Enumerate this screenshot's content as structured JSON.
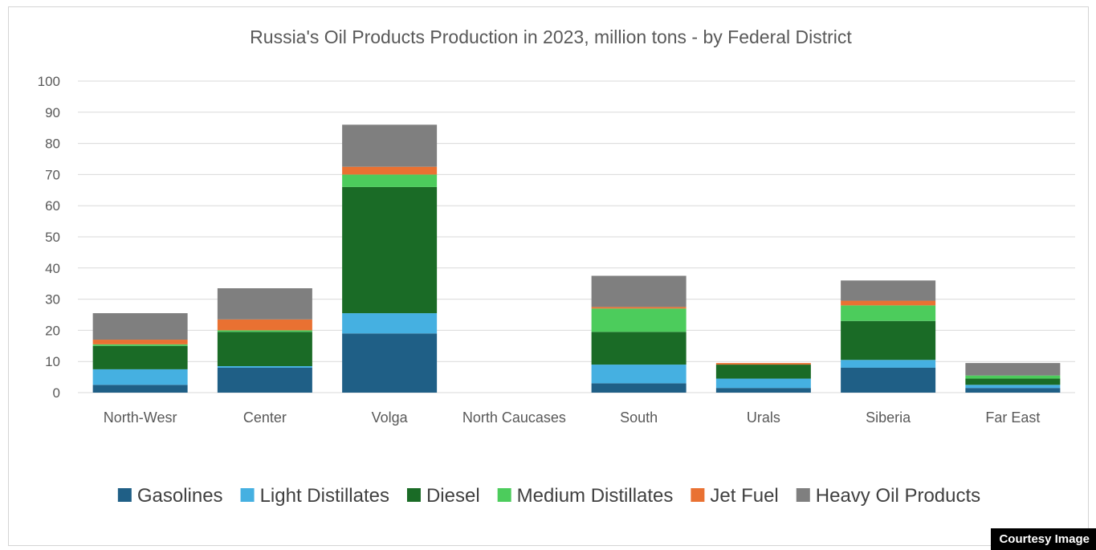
{
  "chart_data": {
    "type": "bar",
    "stacked": true,
    "title": "Russia's Oil Products Production in 2023, million tons - by Federal District",
    "categories": [
      "North-Wesr",
      "Center",
      "Volga",
      "North Caucases",
      "South",
      "Urals",
      "Siberia",
      "Far East"
    ],
    "ylim": [
      0,
      100
    ],
    "yticks": [
      0,
      10,
      20,
      30,
      40,
      50,
      60,
      70,
      80,
      90,
      100
    ],
    "grid": true,
    "legend_position": "bottom",
    "series": [
      {
        "name": "Gasolines",
        "color": "#1f5f86",
        "values": [
          2.5,
          8,
          19,
          0,
          3,
          1.5,
          8,
          1.5
        ]
      },
      {
        "name": "Light Distillates",
        "color": "#45b0e1",
        "values": [
          5,
          0.5,
          6.5,
          0,
          6,
          3,
          2.5,
          1
        ]
      },
      {
        "name": "Diesel",
        "color": "#1a6b26",
        "values": [
          7.5,
          11,
          40.5,
          0,
          10.5,
          4.5,
          12.5,
          2
        ]
      },
      {
        "name": "Medium Distillates",
        "color": "#4ccc5c",
        "values": [
          0.5,
          0.5,
          4,
          0,
          7.5,
          0,
          5,
          1
        ]
      },
      {
        "name": "Jet Fuel",
        "color": "#e97132",
        "values": [
          1.5,
          3.5,
          2.5,
          0,
          0.5,
          0.5,
          1.5,
          0
        ]
      },
      {
        "name": "Heavy Oil Products",
        "color": "#7f7f7f",
        "values": [
          8.5,
          10,
          13.5,
          0,
          10,
          0,
          6.5,
          4
        ]
      }
    ]
  },
  "badge": "Courtesy Image"
}
